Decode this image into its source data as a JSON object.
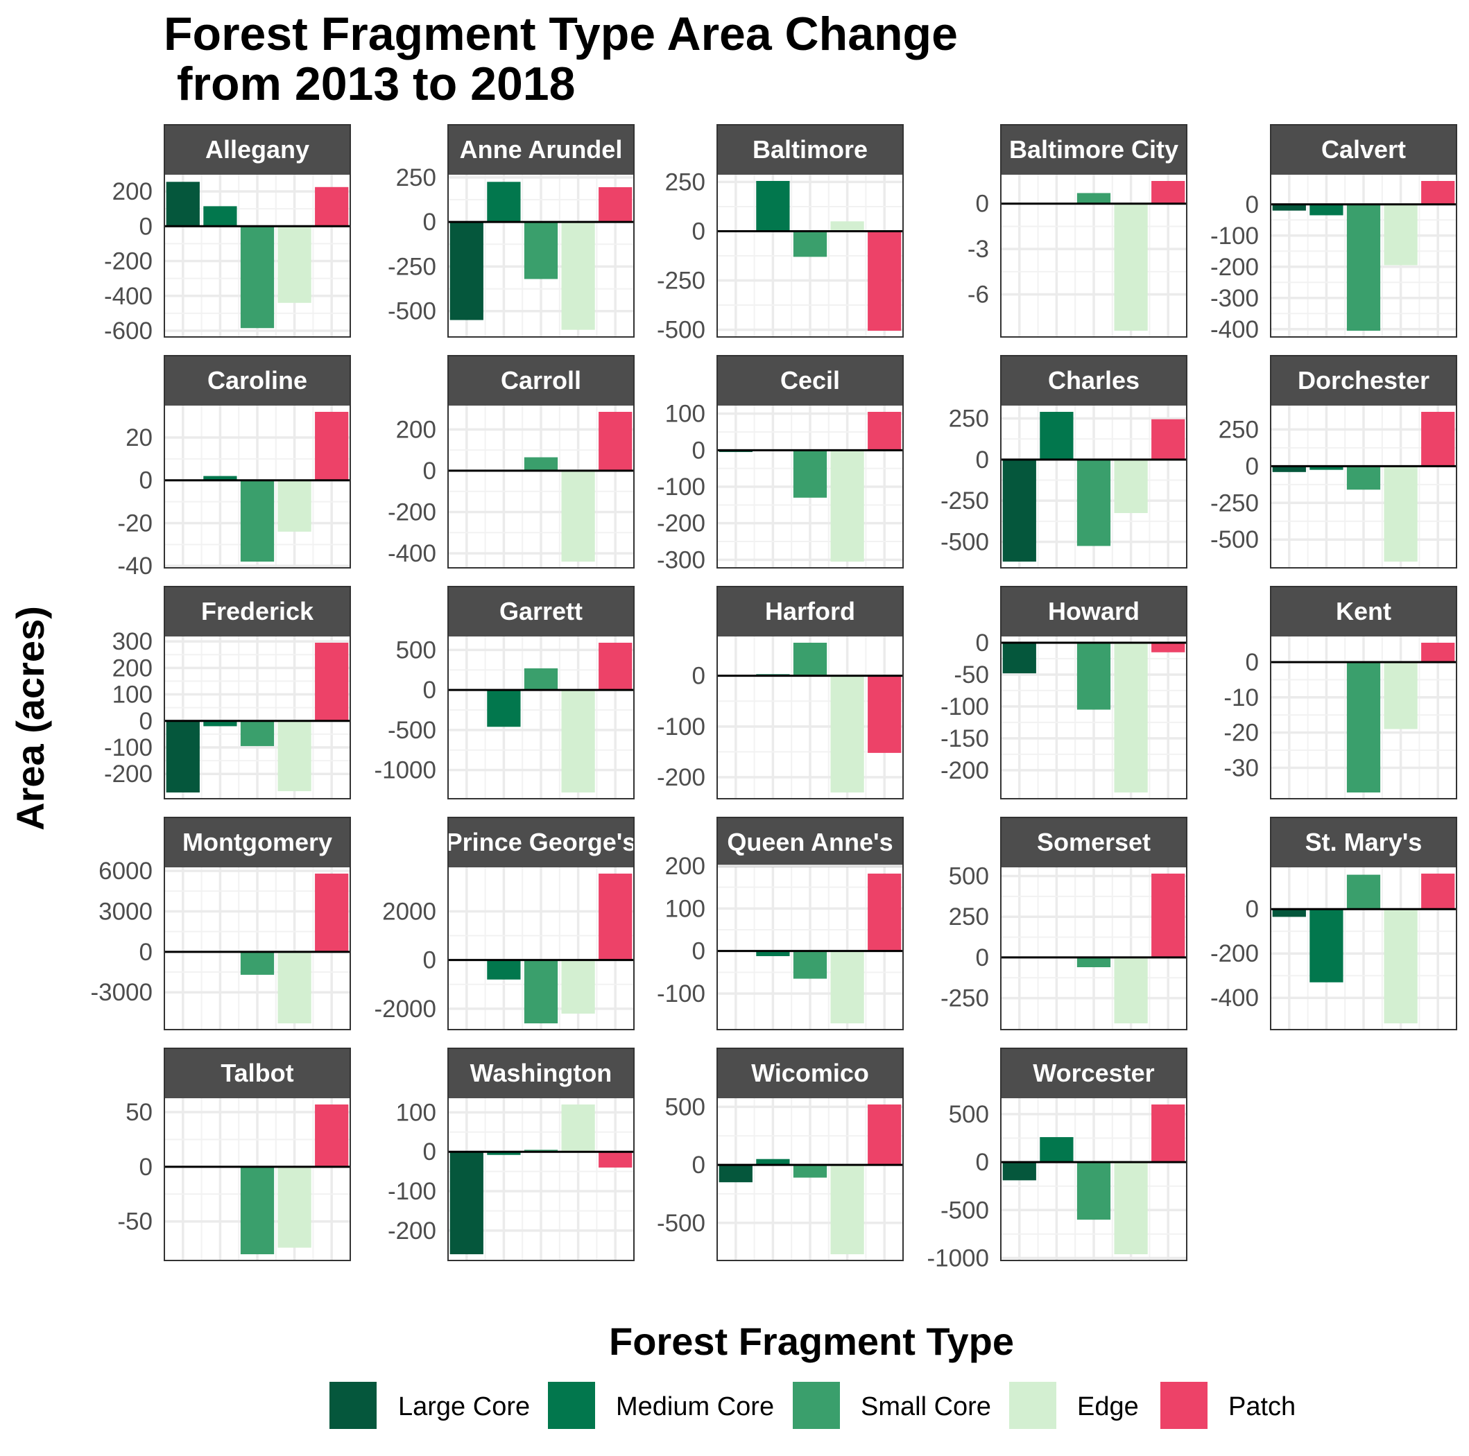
{
  "chart_data": {
    "type": "bar",
    "title_lines": [
      "Forest Fragment Type Area Change",
      " from 2013 to 2018"
    ],
    "ylabel": "Area (acres)",
    "legend_title": "Forest Fragment Type",
    "categories": [
      "Large Core",
      "Medium Core",
      "Small Core",
      "Edge",
      "Patch"
    ],
    "colors": [
      "#05573c",
      "#02774d",
      "#3a9f6c",
      "#d3efd1",
      "#ed4268"
    ],
    "panels": [
      {
        "name": "Allegany",
        "ylim": [
          -600,
          260
        ],
        "ticks": [
          200,
          0,
          -200,
          -400,
          -600
        ],
        "values": [
          255,
          115,
          -585,
          -440,
          225
        ]
      },
      {
        "name": "Anne Arundel",
        "ylim": [
          -610,
          230
        ],
        "ticks": [
          250,
          0,
          -250,
          -500
        ],
        "values": [
          -550,
          225,
          -320,
          -605,
          195
        ]
      },
      {
        "name": "Baltimore",
        "ylim": [
          -505,
          255
        ],
        "ticks": [
          250,
          0,
          -250,
          -500
        ],
        "values": [
          0,
          255,
          -130,
          50,
          -505
        ]
      },
      {
        "name": "Baltimore City",
        "ylim": [
          -8.4,
          1.5
        ],
        "ticks": [
          0,
          -3,
          -6
        ],
        "values": [
          0,
          0,
          0.7,
          -8.4,
          1.5
        ]
      },
      {
        "name": "Calvert",
        "ylim": [
          -405,
          75
        ],
        "ticks": [
          0,
          -100,
          -200,
          -300,
          -400
        ],
        "values": [
          -20,
          -35,
          -405,
          -195,
          75
        ]
      },
      {
        "name": "Caroline",
        "ylim": [
          -38,
          32
        ],
        "ticks": [
          20,
          0,
          -20,
          -40
        ],
        "values": [
          0,
          2,
          -38,
          -24,
          32
        ]
      },
      {
        "name": "Carroll",
        "ylim": [
          -440,
          285
        ],
        "ticks": [
          200,
          0,
          -200,
          -400
        ],
        "values": [
          0,
          0,
          65,
          -440,
          285
        ]
      },
      {
        "name": "Cecil",
        "ylim": [
          -305,
          105
        ],
        "ticks": [
          100,
          0,
          -100,
          -200,
          -300
        ],
        "values": [
          -5,
          0,
          -130,
          -305,
          105
        ]
      },
      {
        "name": "Charles",
        "ylim": [
          -620,
          290
        ],
        "ticks": [
          250,
          0,
          -250,
          -500
        ],
        "values": [
          -620,
          290,
          -525,
          -325,
          245
        ]
      },
      {
        "name": "Dorchester",
        "ylim": [
          -650,
          370
        ],
        "ticks": [
          250,
          0,
          -250,
          -500
        ],
        "values": [
          -40,
          -25,
          -160,
          -650,
          370
        ]
      },
      {
        "name": "Frederick",
        "ylim": [
          -270,
          295
        ],
        "ticks": [
          300,
          200,
          100,
          0,
          -100,
          -200
        ],
        "values": [
          -270,
          -20,
          -95,
          -265,
          295
        ]
      },
      {
        "name": "Garrett",
        "ylim": [
          -1280,
          590
        ],
        "ticks": [
          500,
          0,
          -500,
          -1000
        ],
        "values": [
          0,
          -460,
          270,
          -1280,
          590
        ]
      },
      {
        "name": "Harford",
        "ylim": [
          -230,
          65
        ],
        "ticks": [
          0,
          -100,
          -200
        ],
        "values": [
          0,
          3,
          65,
          -230,
          -152
        ]
      },
      {
        "name": "Howard",
        "ylim": [
          -235,
          0
        ],
        "ticks": [
          0,
          -50,
          -100,
          -150,
          -200
        ],
        "values": [
          -48,
          0,
          -105,
          -235,
          -15
        ]
      },
      {
        "name": "Kent",
        "ylim": [
          -37,
          5.5
        ],
        "ticks": [
          0,
          -10,
          -20,
          -30
        ],
        "values": [
          0,
          0,
          -37,
          -19,
          5.5
        ]
      },
      {
        "name": "Montgomery",
        "ylim": [
          -5300,
          5800
        ],
        "ticks": [
          6000,
          3000,
          0,
          -3000
        ],
        "values": [
          0,
          0,
          -1700,
          -5300,
          5800
        ]
      },
      {
        "name": "Prince George's",
        "ylim": [
          -2600,
          3550
        ],
        "ticks": [
          2000,
          0,
          -2000
        ],
        "values": [
          0,
          -800,
          -2600,
          -2200,
          3550
        ]
      },
      {
        "name": "Queen Anne's",
        "ylim": [
          -170,
          182
        ],
        "ticks": [
          200,
          100,
          0,
          -100
        ],
        "values": [
          0,
          -12,
          -65,
          -170,
          182
        ]
      },
      {
        "name": "Somerset",
        "ylim": [
          -405,
          515
        ],
        "ticks": [
          500,
          250,
          0,
          -250
        ],
        "values": [
          0,
          0,
          -60,
          -405,
          515
        ]
      },
      {
        "name": "St. Mary's",
        "ylim": [
          -515,
          160
        ],
        "ticks": [
          0,
          -200,
          -400
        ],
        "values": [
          -35,
          -330,
          155,
          -515,
          160
        ]
      },
      {
        "name": "Talbot",
        "ylim": [
          -80,
          57
        ],
        "ticks": [
          50,
          0,
          -50
        ],
        "values": [
          0,
          0,
          -80,
          -74,
          57
        ]
      },
      {
        "name": "Washington",
        "ylim": [
          -260,
          120
        ],
        "ticks": [
          100,
          0,
          -100,
          -200
        ],
        "values": [
          -260,
          -8,
          5,
          120,
          -40
        ]
      },
      {
        "name": "Wicomico",
        "ylim": [
          -770,
          520
        ],
        "ticks": [
          500,
          0,
          -500
        ],
        "values": [
          -150,
          50,
          -110,
          -770,
          520
        ]
      },
      {
        "name": "Worcester",
        "ylim": [
          -960,
          600
        ],
        "ticks": [
          500,
          0,
          -500,
          -1000
        ],
        "values": [
          -190,
          260,
          -600,
          -960,
          600
        ]
      }
    ]
  }
}
